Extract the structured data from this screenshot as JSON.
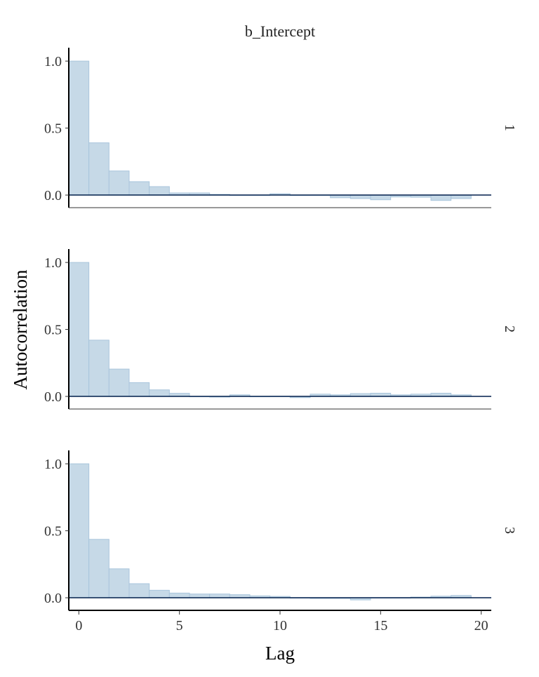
{
  "chart_data": {
    "type": "bar",
    "title": "b_Intercept",
    "xlabel": "Lag",
    "ylabel": "Autocorrelation",
    "xlim": [
      -0.5,
      20.5
    ],
    "ylim": [
      -0.094,
      1.1
    ],
    "x_ticks": [
      "0",
      "5",
      "10",
      "15",
      "20"
    ],
    "x_tick_values": [
      0,
      5,
      10,
      15,
      20
    ],
    "y_ticks": [
      "0.0",
      "0.5",
      "1.0"
    ],
    "y_tick_values": [
      0,
      0.5,
      1.0
    ],
    "lags": [
      0,
      1,
      2,
      3,
      4,
      5,
      6,
      7,
      8,
      9,
      10,
      11,
      12,
      13,
      14,
      15,
      16,
      17,
      18,
      19
    ],
    "series": [
      {
        "name": "1",
        "values": [
          1.0,
          0.39,
          0.18,
          0.1,
          0.063,
          0.016,
          0.016,
          0.005,
          0.0,
          0.0,
          0.01,
          -0.003,
          -0.002,
          -0.02,
          -0.026,
          -0.035,
          -0.014,
          -0.016,
          -0.04,
          -0.026
        ]
      },
      {
        "name": "2",
        "values": [
          1.0,
          0.42,
          0.204,
          0.103,
          0.049,
          0.023,
          0.0,
          -0.005,
          0.012,
          0.0,
          0.001,
          -0.009,
          0.017,
          0.012,
          0.021,
          0.024,
          0.012,
          0.017,
          0.024,
          0.012
        ]
      },
      {
        "name": "3",
        "values": [
          1.0,
          0.436,
          0.216,
          0.105,
          0.056,
          0.035,
          0.028,
          0.028,
          0.023,
          0.014,
          0.01,
          0.0,
          -0.005,
          -0.005,
          -0.016,
          0.0,
          0.0,
          0.005,
          0.012,
          0.017
        ]
      }
    ],
    "colors": {
      "bar_fill": "#c6d9e7",
      "bar_stroke": "#a9c5dc",
      "zero_line": "#011f4b"
    }
  }
}
